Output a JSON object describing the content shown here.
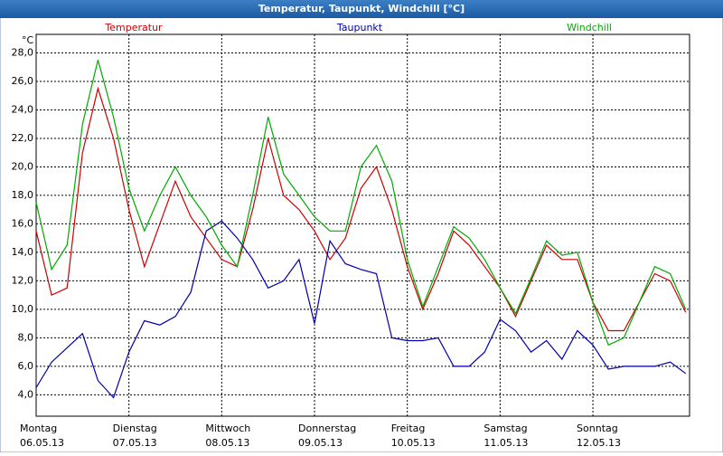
{
  "window_title": "Temperatur, Taupunkt, Windchill [°C]",
  "chart_data": {
    "type": "line",
    "y_unit": "°C",
    "x": [
      0,
      4,
      8,
      12,
      16,
      20,
      24,
      28,
      32,
      36,
      40,
      44,
      48,
      52,
      56,
      60,
      64,
      68,
      72,
      76,
      80,
      84,
      88,
      92,
      96,
      100,
      104,
      108,
      112,
      116,
      120,
      124,
      128,
      132,
      136,
      140,
      144,
      148,
      152,
      156,
      160,
      164,
      168
    ],
    "series": [
      {
        "name": "Temperatur",
        "color": "#cc0000",
        "values": [
          15.5,
          11,
          11.5,
          21,
          25.5,
          22,
          17,
          13,
          16,
          19,
          16.5,
          15,
          13.5,
          13,
          17,
          22,
          18,
          17,
          15.5,
          13.5,
          15,
          18.5,
          20,
          17,
          13,
          10,
          12.5,
          15.5,
          14.5,
          13,
          11.5,
          9.5,
          12,
          14.5,
          13.5,
          13.5,
          10.5,
          8.5,
          8.5,
          10.5,
          12.5,
          12,
          9.8
        ]
      },
      {
        "name": "Taupunkt",
        "color": "#0000aa",
        "values": [
          4.5,
          6.3,
          7.3,
          8.3,
          5,
          3.8,
          7,
          9.2,
          8.9,
          9.5,
          11.2,
          15.5,
          16.2,
          15,
          13.5,
          11.5,
          12,
          13.5,
          9,
          14.8,
          13.2,
          12.8,
          12.5,
          8,
          7.8,
          7.8,
          8,
          6,
          6,
          7,
          9.3,
          8.5,
          7,
          7.8,
          6.5,
          8.5,
          7.5,
          5.8,
          6,
          6,
          6,
          6.3,
          5.5
        ]
      },
      {
        "name": "Windchill",
        "color": "#00aa00",
        "values": [
          17.5,
          12.8,
          14.5,
          23,
          27.5,
          23.5,
          18.5,
          15.5,
          18,
          20,
          18,
          16.5,
          14.5,
          13,
          18,
          23.5,
          19.5,
          18,
          16.5,
          15.5,
          15.5,
          20,
          21.5,
          19,
          13.5,
          10.2,
          13,
          15.8,
          15,
          13.5,
          11.5,
          9.7,
          12.2,
          14.8,
          13.8,
          14,
          10.5,
          7.5,
          8,
          10.5,
          13,
          12.5,
          10
        ]
      }
    ],
    "xlim": [
      0,
      169
    ],
    "xticks": [
      {
        "value": 0,
        "label": "Montag",
        "date": "06.05.13"
      },
      {
        "value": 24,
        "label": "Dienstag",
        "date": "07.05.13"
      },
      {
        "value": 48,
        "label": "Mittwoch",
        "date": "08.05.13"
      },
      {
        "value": 72,
        "label": "Donnerstag",
        "date": "09.05.13"
      },
      {
        "value": 96,
        "label": "Freitag",
        "date": "10.05.13"
      },
      {
        "value": 120,
        "label": "Samstag",
        "date": "11.05.13"
      },
      {
        "value": 144,
        "label": "Sonntag",
        "date": "12.05.13"
      }
    ],
    "ylim": [
      2.5,
      29.3
    ],
    "yticks": [
      {
        "value": 4,
        "label": "4,0"
      },
      {
        "value": 6,
        "label": "6,0"
      },
      {
        "value": 8,
        "label": "8,0"
      },
      {
        "value": 10,
        "label": "10,0"
      },
      {
        "value": 12,
        "label": "12,0"
      },
      {
        "value": 14,
        "label": "14,0"
      },
      {
        "value": 16,
        "label": "16,0"
      },
      {
        "value": 18,
        "label": "18,0"
      },
      {
        "value": 20,
        "label": "20,0"
      },
      {
        "value": 22,
        "label": "22,0"
      },
      {
        "value": 24,
        "label": "24,0"
      },
      {
        "value": 26,
        "label": "26,0"
      },
      {
        "value": 28,
        "label": "28,0"
      }
    ],
    "grid": true
  }
}
